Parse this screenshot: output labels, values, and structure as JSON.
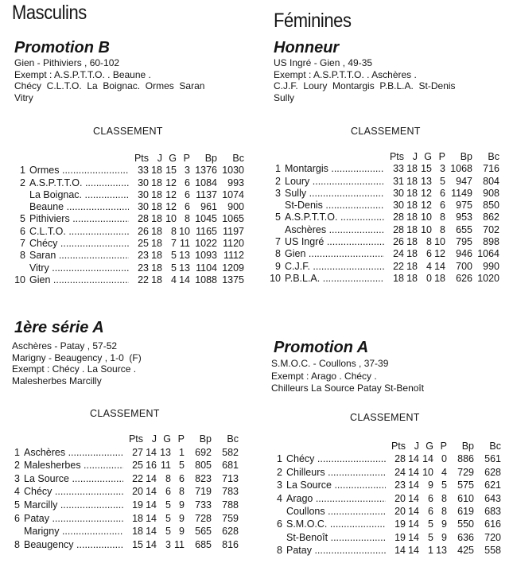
{
  "masculins": {
    "title": "Masculins",
    "promotion_b": {
      "title": "Promotion B",
      "lines": [
        "Gien  - Pithiviers , 60-102",
        "Exempt : A.S.P.T.T.O. . Beaune .",
        "Chécy  C.L.T.O.  La  Boignac.  Ormes  Saran",
        "Vitry"
      ],
      "classement_label": "CLASSEMENT",
      "headers": [
        "Pts",
        "J",
        "G",
        "P",
        "Bp",
        "Bc"
      ],
      "rows": [
        [
          "1",
          "Ormes",
          "33",
          "18",
          "15",
          "3",
          "1376",
          "1030"
        ],
        [
          "2",
          "A.S.P.T.T.O.",
          "30",
          "18",
          "12",
          "6",
          "1084",
          "993"
        ],
        [
          "",
          "La Boignac.",
          "30",
          "18",
          "12",
          "6",
          "1137",
          "1074"
        ],
        [
          "",
          "Beaune",
          "30",
          "18",
          "12",
          "6",
          "961",
          "900"
        ],
        [
          "5",
          "Pithiviers",
          "28",
          "18",
          "10",
          "8",
          "1045",
          "1065"
        ],
        [
          "6",
          "C.L.T.O.",
          "26",
          "18",
          "8",
          "10",
          "1165",
          "1197"
        ],
        [
          "7",
          "Chécy",
          "25",
          "18",
          "7",
          "11",
          "1022",
          "1120"
        ],
        [
          "8",
          "Saran",
          "23",
          "18",
          "5",
          "13",
          "1093",
          "1112"
        ],
        [
          "",
          "Vitry",
          "23",
          "18",
          "5",
          "13",
          "1104",
          "1209"
        ],
        [
          "10",
          "Gien",
          "22",
          "18",
          "4",
          "14",
          "1088",
          "1375"
        ]
      ]
    },
    "serie_a": {
      "title": "1ère série A",
      "lines": [
        "Aschères - Patay , 57-52",
        "Marigny - Beaugency , 1-0  (F)",
        "Exempt : Chécy . La Source .",
        "Malesherbes Marcilly"
      ],
      "classement_label": "CLASSEMENT",
      "headers": [
        "Pts",
        "J",
        "G",
        "P",
        "Bp",
        "Bc"
      ],
      "rows": [
        [
          "1",
          "Aschères",
          "27",
          "14",
          "13",
          "1",
          "692",
          "582"
        ],
        [
          "2",
          "Malesherbes",
          "25",
          "16",
          "11",
          "5",
          "805",
          "681"
        ],
        [
          "3",
          "La Source",
          "22",
          "14",
          "8",
          "6",
          "823",
          "713"
        ],
        [
          "4",
          "Chécy",
          "20",
          "14",
          "6",
          "8",
          "719",
          "783"
        ],
        [
          "5",
          "Marcilly",
          "19",
          "14",
          "5",
          "9",
          "733",
          "788"
        ],
        [
          "6",
          "Patay",
          "18",
          "14",
          "5",
          "9",
          "728",
          "759"
        ],
        [
          "",
          "Marigny",
          "18",
          "14",
          "5",
          "9",
          "565",
          "628"
        ],
        [
          "8",
          "Beaugency",
          "15",
          "14",
          "3",
          "11",
          "685",
          "816"
        ]
      ]
    }
  },
  "feminines": {
    "title": "Féminines",
    "honneur": {
      "title": "Honneur",
      "lines": [
        "US Ingré  - Gien , 49-35",
        "Exempt : A.S.P.T.T.O. . Aschères .",
        "C.J.F.  Loury  Montargis  P.B.L.A.  St-Denis",
        "Sully"
      ],
      "classement_label": "CLASSEMENT",
      "headers": [
        "Pts",
        "J",
        "G",
        "P",
        "Bp",
        "Bc"
      ],
      "rows": [
        [
          "1",
          "Montargis",
          "33",
          "18",
          "15",
          "3",
          "1068",
          "716"
        ],
        [
          "2",
          "Loury",
          "31",
          "18",
          "13",
          "5",
          "947",
          "804"
        ],
        [
          "3",
          "Sully",
          "30",
          "18",
          "12",
          "6",
          "1149",
          "908"
        ],
        [
          "",
          "St-Denis",
          "30",
          "18",
          "12",
          "6",
          "975",
          "850"
        ],
        [
          "5",
          "A.S.P.T.T.O.",
          "28",
          "18",
          "10",
          "8",
          "953",
          "862"
        ],
        [
          "",
          "Aschères",
          "28",
          "18",
          "10",
          "8",
          "655",
          "702"
        ],
        [
          "7",
          "US Ingré",
          "26",
          "18",
          "8",
          "10",
          "795",
          "898"
        ],
        [
          "8",
          "Gien",
          "24",
          "18",
          "6",
          "12",
          "946",
          "1064"
        ],
        [
          "9",
          "C.J.F.",
          "22",
          "18",
          "4",
          "14",
          "700",
          "990"
        ],
        [
          "10",
          "P.B.L.A.",
          "18",
          "18",
          "0",
          "18",
          "626",
          "1020"
        ]
      ]
    },
    "promotion_a": {
      "title": "Promotion A",
      "lines": [
        "S.M.O.C. - Coullons , 37-39",
        "Exempt : Arago . Chécy .",
        "Chilleurs La Source Patay St-Benoît"
      ],
      "classement_label": "CLASSEMENT",
      "headers": [
        "Pts",
        "J",
        "G",
        "P",
        "Bp",
        "Bc"
      ],
      "rows": [
        [
          "1",
          "Chécy",
          "28",
          "14",
          "14",
          "0",
          "886",
          "561"
        ],
        [
          "2",
          "Chilleurs",
          "24",
          "14",
          "10",
          "4",
          "729",
          "628"
        ],
        [
          "3",
          "La Source",
          "23",
          "14",
          "9",
          "5",
          "575",
          "621"
        ],
        [
          "4",
          "Arago",
          "20",
          "14",
          "6",
          "8",
          "610",
          "643"
        ],
        [
          "",
          "Coullons",
          "20",
          "14",
          "6",
          "8",
          "619",
          "683"
        ],
        [
          "6",
          "S.M.O.C.",
          "19",
          "14",
          "5",
          "9",
          "550",
          "616"
        ],
        [
          "",
          "St-Benoît",
          "19",
          "14",
          "5",
          "9",
          "636",
          "720"
        ],
        [
          "8",
          "Patay",
          "14",
          "14",
          "1",
          "13",
          "425",
          "558"
        ]
      ]
    }
  }
}
